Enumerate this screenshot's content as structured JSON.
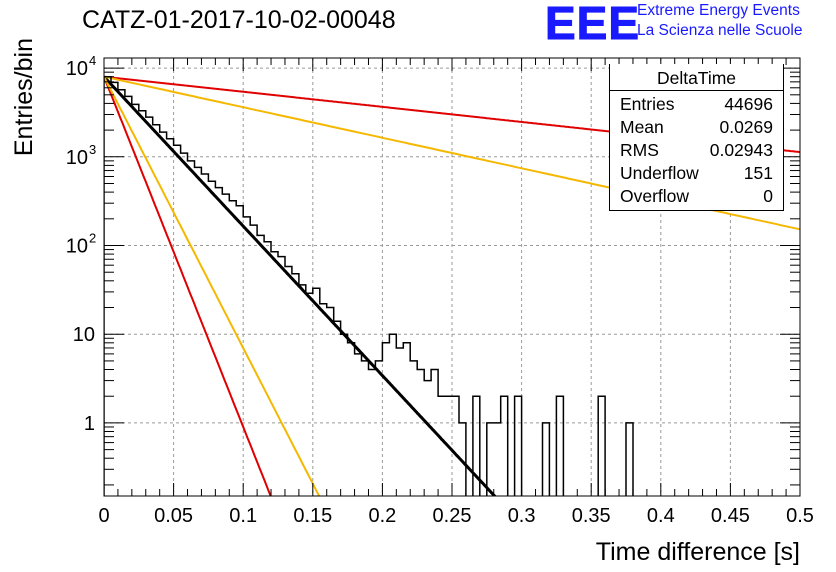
{
  "header": {
    "run_title": "CATZ-01-2017-10-02-00048"
  },
  "logo": {
    "mark": "EEE",
    "line1": "Extreme Energy Events",
    "line2": "La Scienza nelle Scuole",
    "color": "#1a1aff"
  },
  "stats": {
    "title": "DeltaTime",
    "rows": [
      {
        "label": "Entries",
        "value": "44696"
      },
      {
        "label": "Mean",
        "value": "0.0269"
      },
      {
        "label": "RMS",
        "value": "0.02943"
      },
      {
        "label": "Underflow",
        "value": "151"
      },
      {
        "label": "Overflow",
        "value": "0"
      }
    ]
  },
  "chart_data": {
    "type": "line",
    "title": "CATZ-01-2017-10-02-00048",
    "xlabel": "Time difference [s]",
    "ylabel": "Entries/bin",
    "xlim": [
      0,
      0.5
    ],
    "ylim": [
      0.15,
      13000
    ],
    "yscale": "log",
    "grid": true,
    "x_ticks": [
      "0",
      "0.05",
      "0.1",
      "0.15",
      "0.2",
      "0.25",
      "0.3",
      "0.35",
      "0.4",
      "0.45",
      "0.5"
    ],
    "y_ticks": [
      {
        "value": 1,
        "label": "1"
      },
      {
        "value": 10,
        "label": "10"
      },
      {
        "value": 100,
        "label": "10",
        "exp": "2"
      },
      {
        "value": 1000,
        "label": "10",
        "exp": "3"
      },
      {
        "value": 10000,
        "label": "10",
        "exp": "4"
      }
    ],
    "histogram": {
      "bin_width": 0.005,
      "color": "#000000",
      "counts": [
        8000,
        6900,
        5700,
        4800,
        3900,
        3300,
        2800,
        2300,
        1900,
        1600,
        1350,
        1100,
        900,
        760,
        640,
        530,
        450,
        380,
        320,
        280,
        210,
        170,
        130,
        110,
        85,
        75,
        58,
        48,
        36,
        29,
        33,
        22,
        20,
        14,
        10,
        8,
        6,
        5,
        4,
        5,
        8,
        10,
        7,
        8,
        5,
        4,
        3,
        4,
        2,
        2,
        2,
        1,
        0,
        2,
        0,
        1,
        1,
        2,
        0,
        2,
        0,
        0,
        0,
        1,
        0,
        2,
        0,
        0,
        0,
        0,
        0,
        2,
        0,
        0,
        0,
        1,
        0,
        0,
        0,
        0,
        0,
        0,
        0,
        0,
        0,
        0,
        0,
        0,
        0,
        0,
        0,
        0,
        0,
        0,
        0,
        0,
        0,
        0,
        0,
        0
      ]
    },
    "series": [
      {
        "name": "",
        "color": "#000000",
        "amplitude": 8000,
        "tau": 0.02578,
        "x_end": 0.29
      },
      {
        "name": "",
        "color": "#e00000",
        "amplitude": 8000,
        "tau": 0.011,
        "x_end": 0.5
      },
      {
        "name": "",
        "color": "#f5b800",
        "amplitude": 8000,
        "tau": 0.0142,
        "x_end": 0.5
      },
      {
        "name": "",
        "color": "#e00000",
        "amplitude": 8000,
        "tau": 0.2556,
        "x_end": 0.5
      },
      {
        "name": "",
        "color": "#f5b800",
        "amplitude": 8000,
        "tau": 0.1262,
        "x_end": 0.5
      }
    ]
  }
}
